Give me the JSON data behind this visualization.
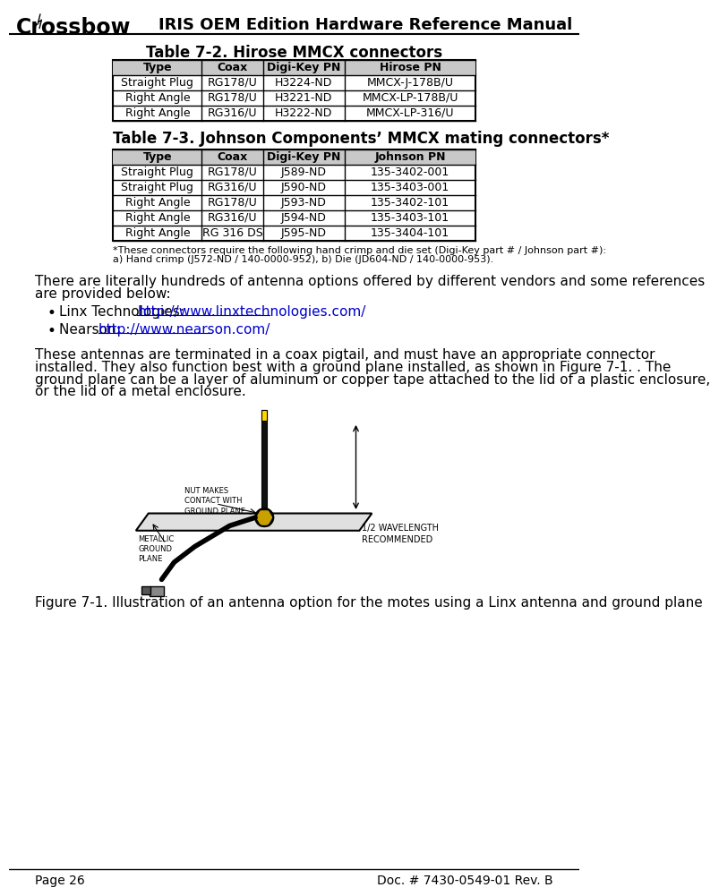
{
  "header_title": "IRIS OEM Edition Hardware Reference Manual",
  "table1_title": "Table 7-2. Hirose MMCX connectors",
  "table1_headers": [
    "Type",
    "Coax",
    "Digi-Key PN",
    "Hirose PN"
  ],
  "table1_rows": [
    [
      "Straight Plug",
      "RG178/U",
      "H3224-ND",
      "MMCX-J-178B/U"
    ],
    [
      "Right Angle",
      "RG178/U",
      "H3221-ND",
      "MMCX-LP-178B/U"
    ],
    [
      "Right Angle",
      "RG316/U",
      "H3222-ND",
      "MMCX-LP-316/U"
    ]
  ],
  "table2_title": "Table 7-3. Johnson Components’ MMCX mating connectors*",
  "table2_headers": [
    "Type",
    "Coax",
    "Digi-Key PN",
    "Johnson PN"
  ],
  "table2_rows": [
    [
      "Straight Plug",
      "RG178/U",
      "J589-ND",
      "135-3402-001"
    ],
    [
      "Straight Plug",
      "RG316/U",
      "J590-ND",
      "135-3403-001"
    ],
    [
      "Right Angle",
      "RG178/U",
      "J593-ND",
      "135-3402-101"
    ],
    [
      "Right Angle",
      "RG316/U",
      "J594-ND",
      "135-3403-101"
    ],
    [
      "Right Angle",
      "RG 316 DS",
      "J595-ND",
      "135-3404-101"
    ]
  ],
  "footnote_line1": "*These connectors require the following hand crimp and die set (Digi-Key part # / Johnson part #):",
  "footnote_line2": "a) Hand crimp (J572-ND / 140-0000-952), b) Die (JD604-ND / 140-0000-953).",
  "body_text1_line1": "There are literally hundreds of antenna options offered by different vendors and some references",
  "body_text1_line2": "are provided below:",
  "bullet1_label": "Linx Technologies: ",
  "bullet1_link": "http://www.linxtechnologies.com/",
  "bullet2_label": "Nearson: ",
  "bullet2_link": "http://www.nearson.com/",
  "body_text2_line1": "These antennas are terminated in a coax pigtail, and must have an appropriate connector",
  "body_text2_line2": "installed. They also function best with a ground plane installed, as shown in Figure 7-1. . The",
  "body_text2_line3": "ground plane can be a layer of aluminum or copper tape attached to the lid of a plastic enclosure,",
  "body_text2_line4": "or the lid of a metal enclosure.",
  "fig_caption": "Figure 7-1. Illustration of an antenna option for the motes using a Linx antenna and ground plane",
  "footer_left": "Page 26",
  "footer_right": "Doc. # 7430-0549-01 Rev. B",
  "link_color": "#0000CC",
  "label_metallic": "METALLIC\nGROUND\nPLANE",
  "label_nut": "NUT MAKES\nCONTACT WITH\nGROUND PLANE",
  "label_wavelength": "1/2 WAVELENGTH\nRECOMMENDED"
}
